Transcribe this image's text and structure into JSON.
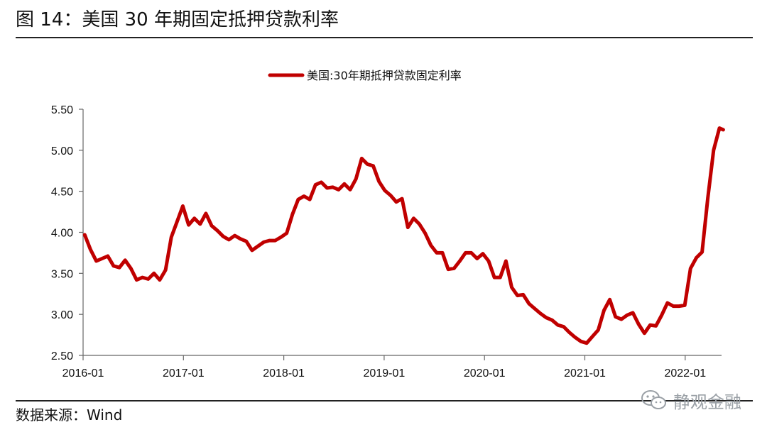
{
  "figure": {
    "title": "图 14：美国 30 年期固定抵押贷款利率",
    "source": "数据来源：Wind",
    "watermark": "静观金融"
  },
  "colors": {
    "series": "#C00000",
    "axis": "#666666",
    "text": "#111111"
  },
  "icons": {
    "watermark": "wechat-icon"
  },
  "chart_data": {
    "type": "line",
    "title": "",
    "xlabel": "",
    "ylabel": "",
    "ylim": [
      2.5,
      5.5
    ],
    "yticks": [
      "5.50",
      "5.00",
      "4.50",
      "4.00",
      "3.50",
      "3.00",
      "2.50"
    ],
    "xticks": [
      "2016-01",
      "2017-01",
      "2018-01",
      "2019-01",
      "2020-01",
      "2021-01",
      "2022-01"
    ],
    "xlim": [
      "2016-01-07",
      "2022-05-19"
    ],
    "grid": false,
    "legend": "top-center",
    "series": [
      {
        "name": "美国:30年期抵押贷款固定利率",
        "color": "#C00000",
        "points": [
          [
            "2016-01-07",
            3.97
          ],
          [
            "2016-01-28",
            3.79
          ],
          [
            "2016-02-18",
            3.65
          ],
          [
            "2016-03-10",
            3.68
          ],
          [
            "2016-03-31",
            3.71
          ],
          [
            "2016-04-21",
            3.59
          ],
          [
            "2016-05-12",
            3.57
          ],
          [
            "2016-06-02",
            3.66
          ],
          [
            "2016-06-23",
            3.56
          ],
          [
            "2016-07-14",
            3.42
          ],
          [
            "2016-08-04",
            3.45
          ],
          [
            "2016-08-25",
            3.43
          ],
          [
            "2016-09-15",
            3.5
          ],
          [
            "2016-10-06",
            3.42
          ],
          [
            "2016-10-27",
            3.54
          ],
          [
            "2016-11-17",
            3.94
          ],
          [
            "2016-12-08",
            4.13
          ],
          [
            "2016-12-29",
            4.32
          ],
          [
            "2017-01-19",
            4.09
          ],
          [
            "2017-02-09",
            4.17
          ],
          [
            "2017-03-02",
            4.1
          ],
          [
            "2017-03-23",
            4.23
          ],
          [
            "2017-04-13",
            4.08
          ],
          [
            "2017-05-04",
            4.02
          ],
          [
            "2017-05-25",
            3.95
          ],
          [
            "2017-06-15",
            3.91
          ],
          [
            "2017-07-06",
            3.96
          ],
          [
            "2017-07-27",
            3.92
          ],
          [
            "2017-08-17",
            3.89
          ],
          [
            "2017-09-07",
            3.78
          ],
          [
            "2017-09-28",
            3.83
          ],
          [
            "2017-10-19",
            3.88
          ],
          [
            "2017-11-09",
            3.9
          ],
          [
            "2017-11-30",
            3.9
          ],
          [
            "2017-12-21",
            3.94
          ],
          [
            "2018-01-11",
            3.99
          ],
          [
            "2018-02-01",
            4.22
          ],
          [
            "2018-02-22",
            4.4
          ],
          [
            "2018-03-15",
            4.44
          ],
          [
            "2018-04-05",
            4.4
          ],
          [
            "2018-04-26",
            4.58
          ],
          [
            "2018-05-17",
            4.61
          ],
          [
            "2018-06-07",
            4.54
          ],
          [
            "2018-06-28",
            4.55
          ],
          [
            "2018-07-19",
            4.52
          ],
          [
            "2018-08-09",
            4.59
          ],
          [
            "2018-08-30",
            4.52
          ],
          [
            "2018-09-20",
            4.65
          ],
          [
            "2018-10-11",
            4.9
          ],
          [
            "2018-11-01",
            4.83
          ],
          [
            "2018-11-22",
            4.81
          ],
          [
            "2018-12-13",
            4.62
          ],
          [
            "2019-01-03",
            4.51
          ],
          [
            "2019-01-24",
            4.45
          ],
          [
            "2019-02-14",
            4.37
          ],
          [
            "2019-03-07",
            4.41
          ],
          [
            "2019-03-28",
            4.06
          ],
          [
            "2019-04-18",
            4.17
          ],
          [
            "2019-05-09",
            4.1
          ],
          [
            "2019-05-30",
            3.99
          ],
          [
            "2019-06-20",
            3.84
          ],
          [
            "2019-07-11",
            3.75
          ],
          [
            "2019-08-01",
            3.75
          ],
          [
            "2019-08-22",
            3.55
          ],
          [
            "2019-09-12",
            3.56
          ],
          [
            "2019-10-03",
            3.65
          ],
          [
            "2019-10-24",
            3.75
          ],
          [
            "2019-11-14",
            3.75
          ],
          [
            "2019-12-05",
            3.68
          ],
          [
            "2019-12-26",
            3.74
          ],
          [
            "2020-01-16",
            3.65
          ],
          [
            "2020-02-06",
            3.45
          ],
          [
            "2020-02-27",
            3.45
          ],
          [
            "2020-03-19",
            3.65
          ],
          [
            "2020-04-09",
            3.33
          ],
          [
            "2020-04-30",
            3.23
          ],
          [
            "2020-05-21",
            3.24
          ],
          [
            "2020-06-11",
            3.13
          ],
          [
            "2020-07-02",
            3.07
          ],
          [
            "2020-07-23",
            3.01
          ],
          [
            "2020-08-13",
            2.96
          ],
          [
            "2020-09-03",
            2.93
          ],
          [
            "2020-09-24",
            2.87
          ],
          [
            "2020-10-15",
            2.85
          ],
          [
            "2020-11-05",
            2.78
          ],
          [
            "2020-11-26",
            2.72
          ],
          [
            "2020-12-17",
            2.67
          ],
          [
            "2021-01-07",
            2.65
          ],
          [
            "2021-01-28",
            2.73
          ],
          [
            "2021-02-18",
            2.81
          ],
          [
            "2021-03-11",
            3.05
          ],
          [
            "2021-04-01",
            3.18
          ],
          [
            "2021-04-22",
            2.97
          ],
          [
            "2021-05-13",
            2.94
          ],
          [
            "2021-06-03",
            2.99
          ],
          [
            "2021-06-24",
            3.02
          ],
          [
            "2021-07-15",
            2.88
          ],
          [
            "2021-08-05",
            2.77
          ],
          [
            "2021-08-26",
            2.87
          ],
          [
            "2021-09-16",
            2.86
          ],
          [
            "2021-10-07",
            2.99
          ],
          [
            "2021-10-28",
            3.14
          ],
          [
            "2021-11-18",
            3.1
          ],
          [
            "2021-12-09",
            3.1
          ],
          [
            "2021-12-30",
            3.11
          ],
          [
            "2022-01-20",
            3.56
          ],
          [
            "2022-02-10",
            3.69
          ],
          [
            "2022-03-03",
            3.76
          ],
          [
            "2022-03-24",
            4.42
          ],
          [
            "2022-04-14",
            5.0
          ],
          [
            "2022-05-05",
            5.27
          ],
          [
            "2022-05-19",
            5.25
          ]
        ]
      }
    ]
  }
}
